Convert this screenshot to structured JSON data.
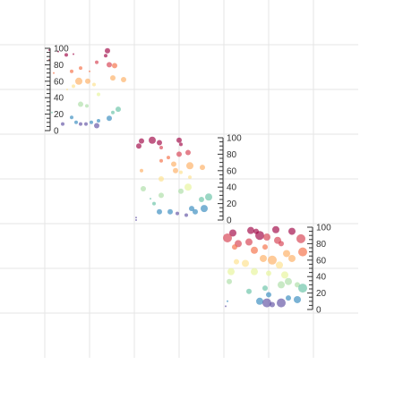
{
  "chart_data": {
    "type": "scatter",
    "grid": true,
    "y_ticks": [
      "0",
      "20",
      "40",
      "60",
      "80",
      "100"
    ],
    "ylim": [
      0,
      100
    ],
    "panels": [
      {
        "points": [
          {
            "x": 0.05,
            "y": 98,
            "r": 1
          },
          {
            "x": 0.15,
            "y": 96,
            "r": 1
          },
          {
            "x": 0.24,
            "y": 92,
            "r": 2
          },
          {
            "x": 0.32,
            "y": 93,
            "r": 1
          },
          {
            "x": 0.05,
            "y": 86,
            "r": 1
          },
          {
            "x": 0.7,
            "y": 97,
            "r": 3
          },
          {
            "x": 0.68,
            "y": 91,
            "r": 2
          },
          {
            "x": 0.58,
            "y": 83,
            "r": 2
          },
          {
            "x": 0.72,
            "y": 80,
            "r": 3
          },
          {
            "x": 0.78,
            "y": 79,
            "r": 3
          },
          {
            "x": 0.4,
            "y": 76,
            "r": 2
          },
          {
            "x": 0.3,
            "y": 72,
            "r": 2
          },
          {
            "x": 0.5,
            "y": 72,
            "r": 1
          },
          {
            "x": 0.1,
            "y": 70,
            "r": 1
          },
          {
            "x": 0.76,
            "y": 64,
            "r": 3
          },
          {
            "x": 0.88,
            "y": 62,
            "r": 3
          },
          {
            "x": 0.38,
            "y": 60,
            "r": 4
          },
          {
            "x": 0.48,
            "y": 60,
            "r": 3
          },
          {
            "x": 0.55,
            "y": 56,
            "r": 2
          },
          {
            "x": 0.32,
            "y": 54,
            "r": 2
          },
          {
            "x": 0.25,
            "y": 50,
            "r": 1
          },
          {
            "x": 0.6,
            "y": 44,
            "r": 2
          },
          {
            "x": 0.4,
            "y": 32,
            "r": 3
          },
          {
            "x": 0.47,
            "y": 30,
            "r": 2
          },
          {
            "x": 0.82,
            "y": 26,
            "r": 3
          },
          {
            "x": 0.76,
            "y": 22,
            "r": 2
          },
          {
            "x": 0.08,
            "y": 22,
            "r": 1
          },
          {
            "x": 0.3,
            "y": 16,
            "r": 2
          },
          {
            "x": 0.72,
            "y": 15,
            "r": 3
          },
          {
            "x": 0.6,
            "y": 12,
            "r": 2
          },
          {
            "x": 0.52,
            "y": 10,
            "r": 2
          },
          {
            "x": 0.35,
            "y": 10,
            "r": 2
          },
          {
            "x": 0.46,
            "y": 8,
            "r": 2
          },
          {
            "x": 0.4,
            "y": 8,
            "r": 2
          },
          {
            "x": 0.2,
            "y": 8,
            "r": 2
          },
          {
            "x": 0.58,
            "y": 6,
            "r": 3
          }
        ]
      },
      {
        "points": [
          {
            "x": 0.08,
            "y": 96,
            "r": 3
          },
          {
            "x": 0.2,
            "y": 97,
            "r": 4
          },
          {
            "x": 0.28,
            "y": 94,
            "r": 3
          },
          {
            "x": 0.5,
            "y": 97,
            "r": 3
          },
          {
            "x": 0.05,
            "y": 90,
            "r": 3
          },
          {
            "x": 0.52,
            "y": 92,
            "r": 2
          },
          {
            "x": 0.3,
            "y": 88,
            "r": 2
          },
          {
            "x": 0.6,
            "y": 82,
            "r": 3
          },
          {
            "x": 0.5,
            "y": 80,
            "r": 3
          },
          {
            "x": 0.38,
            "y": 76,
            "r": 2
          },
          {
            "x": 0.3,
            "y": 72,
            "r": 2
          },
          {
            "x": 0.44,
            "y": 68,
            "r": 3
          },
          {
            "x": 0.62,
            "y": 66,
            "r": 4
          },
          {
            "x": 0.76,
            "y": 64,
            "r": 3
          },
          {
            "x": 0.46,
            "y": 60,
            "r": 3
          },
          {
            "x": 0.52,
            "y": 58,
            "r": 2
          },
          {
            "x": 0.08,
            "y": 60,
            "r": 2
          },
          {
            "x": 0.62,
            "y": 52,
            "r": 2
          },
          {
            "x": 0.3,
            "y": 50,
            "r": 3
          },
          {
            "x": 0.6,
            "y": 40,
            "r": 4
          },
          {
            "x": 0.1,
            "y": 38,
            "r": 3
          },
          {
            "x": 0.52,
            "y": 35,
            "r": 3
          },
          {
            "x": 0.3,
            "y": 30,
            "r": 3
          },
          {
            "x": 0.83,
            "y": 28,
            "r": 4
          },
          {
            "x": 0.75,
            "y": 25,
            "r": 3
          },
          {
            "x": 0.18,
            "y": 26,
            "r": 1
          },
          {
            "x": 0.22,
            "y": 20,
            "r": 2
          },
          {
            "x": 0.78,
            "y": 14,
            "r": 4
          },
          {
            "x": 0.64,
            "y": 14,
            "r": 3
          },
          {
            "x": 0.68,
            "y": 10,
            "r": 3
          },
          {
            "x": 0.4,
            "y": 10,
            "r": 3
          },
          {
            "x": 0.28,
            "y": 10,
            "r": 3
          },
          {
            "x": 0.48,
            "y": 8,
            "r": 2
          },
          {
            "x": 0.58,
            "y": 6,
            "r": 2
          },
          {
            "x": 0.02,
            "y": 3,
            "r": 1
          },
          {
            "x": 0.02,
            "y": 0,
            "r": 1
          }
        ]
      },
      {
        "points": [
          {
            "x": 0.3,
            "y": 96,
            "r": 4
          },
          {
            "x": 0.36,
            "y": 95,
            "r": 3
          },
          {
            "x": 0.1,
            "y": 93,
            "r": 4
          },
          {
            "x": 0.58,
            "y": 97,
            "r": 4
          },
          {
            "x": 0.76,
            "y": 95,
            "r": 4
          },
          {
            "x": 0.4,
            "y": 90,
            "r": 5
          },
          {
            "x": 0.48,
            "y": 88,
            "r": 4
          },
          {
            "x": 0.04,
            "y": 87,
            "r": 5
          },
          {
            "x": 0.6,
            "y": 84,
            "r": 4
          },
          {
            "x": 0.86,
            "y": 86,
            "r": 5
          },
          {
            "x": 0.28,
            "y": 82,
            "r": 4
          },
          {
            "x": 0.16,
            "y": 80,
            "r": 4
          },
          {
            "x": 0.64,
            "y": 80,
            "r": 3
          },
          {
            "x": 0.12,
            "y": 76,
            "r": 3
          },
          {
            "x": 0.46,
            "y": 76,
            "r": 3
          },
          {
            "x": 0.34,
            "y": 72,
            "r": 4
          },
          {
            "x": 0.88,
            "y": 70,
            "r": 5
          },
          {
            "x": 0.7,
            "y": 68,
            "r": 4
          },
          {
            "x": 0.76,
            "y": 62,
            "r": 4
          },
          {
            "x": 0.44,
            "y": 62,
            "r": 4
          },
          {
            "x": 0.54,
            "y": 60,
            "r": 5
          },
          {
            "x": 0.14,
            "y": 58,
            "r": 3
          },
          {
            "x": 0.24,
            "y": 56,
            "r": 4
          },
          {
            "x": 0.62,
            "y": 54,
            "r": 4
          },
          {
            "x": 0.08,
            "y": 46,
            "r": 4
          },
          {
            "x": 0.34,
            "y": 46,
            "r": 4
          },
          {
            "x": 0.5,
            "y": 44,
            "r": 3
          },
          {
            "x": 0.68,
            "y": 42,
            "r": 4
          },
          {
            "x": 0.72,
            "y": 34,
            "r": 4
          },
          {
            "x": 0.64,
            "y": 30,
            "r": 4
          },
          {
            "x": 0.82,
            "y": 30,
            "r": 3
          },
          {
            "x": 0.46,
            "y": 26,
            "r": 3
          },
          {
            "x": 0.88,
            "y": 26,
            "r": 5
          },
          {
            "x": 0.28,
            "y": 22,
            "r": 3
          },
          {
            "x": 0.06,
            "y": 34,
            "r": 3
          },
          {
            "x": 0.5,
            "y": 18,
            "r": 3
          },
          {
            "x": 0.72,
            "y": 14,
            "r": 3
          },
          {
            "x": 0.82,
            "y": 12,
            "r": 4
          },
          {
            "x": 0.4,
            "y": 10,
            "r": 4
          },
          {
            "x": 0.48,
            "y": 8,
            "r": 5
          },
          {
            "x": 0.64,
            "y": 8,
            "r": 5
          },
          {
            "x": 0.54,
            "y": 6,
            "r": 3
          },
          {
            "x": 0.04,
            "y": 10,
            "r": 1
          },
          {
            "x": 0.02,
            "y": 4,
            "r": 1
          }
        ]
      }
    ],
    "colors": {
      "grid": "#e5e5e5",
      "axis": "#333333",
      "scale": [
        "#5e4fa2",
        "#3288bd",
        "#66c2a5",
        "#abdda4",
        "#e6f598",
        "#fee08b",
        "#fdae61",
        "#f46d43",
        "#d53e4f",
        "#9e0142"
      ]
    }
  }
}
